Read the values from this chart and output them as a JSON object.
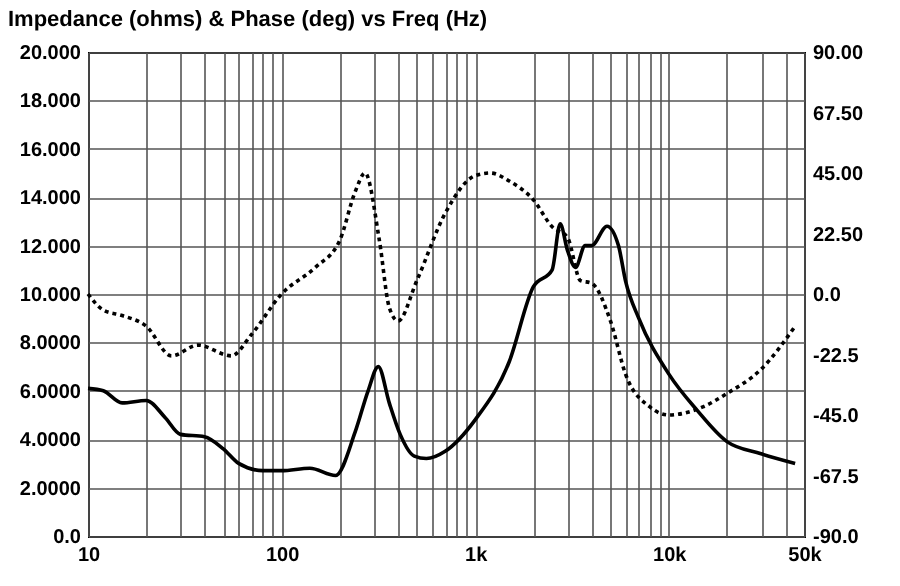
{
  "chart_data": {
    "type": "line",
    "title": "Impedance (ohms) & Phase (deg) vs Freq (Hz)",
    "log": "x",
    "grid": true,
    "marker": "none",
    "xlim": [
      10,
      50000
    ],
    "xticks": [
      10,
      {
        "value": 20,
        "label": null
      },
      {
        "value": 30,
        "label": null
      },
      {
        "value": 40,
        "label": null
      },
      {
        "value": 50,
        "label": null
      },
      {
        "value": 60,
        "label": null
      },
      {
        "value": 70,
        "label": null
      },
      {
        "value": 80,
        "label": null
      },
      {
        "value": 90,
        "label": null
      },
      100,
      {
        "value": 200,
        "label": null
      },
      {
        "value": 300,
        "label": null
      },
      {
        "value": 400,
        "label": null
      },
      {
        "value": 500,
        "label": null
      },
      {
        "value": 600,
        "label": null
      },
      {
        "value": 700,
        "label": null
      },
      {
        "value": 800,
        "label": null
      },
      {
        "value": 900,
        "label": null
      },
      {
        "value": 1000,
        "label": "1k"
      },
      {
        "value": 2000,
        "label": null
      },
      {
        "value": 3000,
        "label": null
      },
      {
        "value": 4000,
        "label": null
      },
      {
        "value": 5000,
        "label": null
      },
      {
        "value": 6000,
        "label": null
      },
      {
        "value": 7000,
        "label": null
      },
      {
        "value": 8000,
        "label": null
      },
      {
        "value": 9000,
        "label": null
      },
      {
        "value": 10000,
        "label": "10k"
      },
      {
        "value": 20000,
        "label": null
      },
      {
        "value": 30000,
        "label": null
      },
      {
        "value": 40000,
        "label": null
      },
      {
        "value": 50000,
        "label": "50k"
      }
    ],
    "ylim": [
      0,
      20
    ],
    "yticks": [
      {
        "value": 0,
        "label": "0.0"
      },
      {
        "value": 2,
        "label": "2.0000"
      },
      {
        "value": 4,
        "label": "4.0000"
      },
      {
        "value": 6,
        "label": "6.0000"
      },
      {
        "value": 8,
        "label": "8.0000"
      },
      {
        "value": 10,
        "label": "10.000"
      },
      {
        "value": 12,
        "label": "12.000"
      },
      {
        "value": 14,
        "label": "14.000"
      },
      {
        "value": 16,
        "label": "16.000"
      },
      {
        "value": 18,
        "label": "18.000"
      },
      {
        "value": 20,
        "label": "20.000"
      }
    ],
    "y2lim": [
      -90,
      90
    ],
    "y2ticks": [
      {
        "value": -90,
        "label": "-90.0"
      },
      {
        "value": -67.5,
        "label": "-67.5"
      },
      {
        "value": -45,
        "label": "-45.0"
      },
      {
        "value": -22.5,
        "label": "-22.5"
      },
      {
        "value": 0,
        "label": "0.0"
      },
      {
        "value": 22.5,
        "label": "22.50"
      },
      {
        "value": 45,
        "label": "45.00"
      },
      {
        "value": 67.5,
        "label": "67.50"
      },
      {
        "value": 90,
        "label": "90.00"
      }
    ],
    "series": [
      {
        "color": "#000000",
        "line_style": "solid",
        "x": [
          10,
          12,
          15,
          20,
          25,
          30,
          40,
          50,
          60,
          80,
          100,
          140,
          190,
          240,
          280,
          316,
          360,
          410,
          485,
          560,
          700,
          1000,
          1500,
          2000,
          2500,
          2750,
          3000,
          3300,
          3700,
          4000,
          4800,
          5500,
          6000,
          7000,
          10000,
          14000,
          20000,
          30000,
          45000
        ],
        "values": [
          6.1,
          6.0,
          5.5,
          5.6,
          4.9,
          4.2,
          4.1,
          3.6,
          3.0,
          2.7,
          2.7,
          2.8,
          2.5,
          4.3,
          6.0,
          7.0,
          5.5,
          4.2,
          3.3,
          3.2,
          3.5,
          4.8,
          7.2,
          10.3,
          11.0,
          12.9,
          11.8,
          11.1,
          12.0,
          12.0,
          12.8,
          12.0,
          10.5,
          9.0,
          6.7,
          5.2,
          3.9,
          3.4,
          3.0
        ]
      },
      {
        "color": "#000000",
        "line_style": "dotted",
        "axis": "y2",
        "x": [
          10,
          12,
          15,
          20,
          27,
          37,
          55,
          70,
          100,
          150,
          200,
          240,
          270,
          320,
          360,
          400,
          500,
          700,
          1000,
          1200,
          1500,
          2000,
          2500,
          3000,
          3500,
          4000,
          5000,
          6000,
          8000,
          10000,
          15000,
          20000,
          30000,
          45000
        ],
        "values": [
          0,
          -6,
          -8,
          -12,
          -23,
          -19,
          -23,
          -15,
          0,
          10,
          20,
          38,
          45,
          20,
          -5,
          -10,
          5,
          30,
          44,
          45,
          42,
          35,
          25,
          21,
          5,
          4,
          -10,
          -30,
          -42,
          -45,
          -42,
          -37,
          -28,
          -12
        ]
      }
    ]
  }
}
